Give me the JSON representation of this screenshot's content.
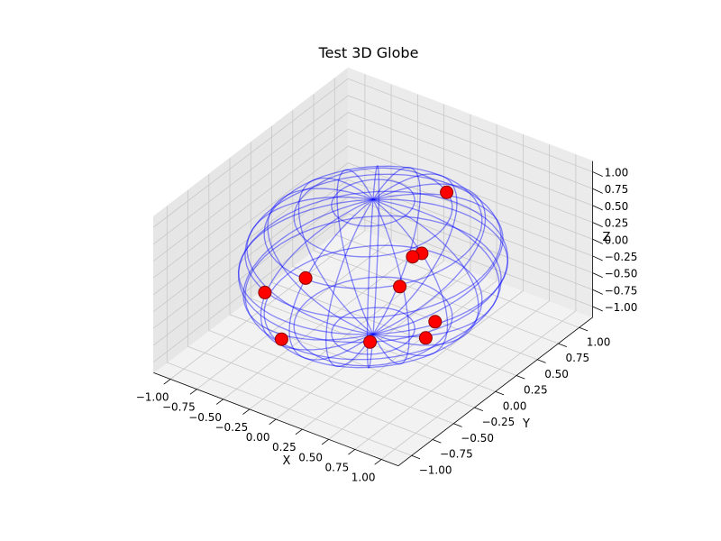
{
  "chart_data": {
    "type": "scatter",
    "subtype": "3d-scatter-with-wireframe-sphere",
    "title": "Test 3D Globe",
    "xlabel": "X",
    "ylabel": "Y",
    "zlabel": "Z",
    "xlim": [
      -1.05,
      1.05
    ],
    "ylim": [
      -1.05,
      1.05
    ],
    "zlim": [
      -1.05,
      1.05
    ],
    "xticks": [
      "−1.00",
      "−0.75",
      "−0.50",
      "−0.25",
      "0.00",
      "0.25",
      "0.50",
      "0.75",
      "1.00"
    ],
    "yticks": [
      "−1.00",
      "−0.75",
      "−0.50",
      "−0.25",
      "0.00",
      "0.25",
      "0.50",
      "0.75",
      "1.00"
    ],
    "zticks": [
      "−1.00",
      "−0.75",
      "−0.50",
      "−0.25",
      "0.00",
      "0.25",
      "0.50",
      "0.75",
      "1.00"
    ],
    "view": {
      "elev": 30,
      "azim": -60
    },
    "grid": true,
    "sphere": {
      "radius": 1,
      "color": "#0000ff",
      "meridians": 20,
      "parallels": 10,
      "alpha": 0.3
    },
    "points": {
      "color": "#ff0000",
      "edgecolor": "#8b0000",
      "x": [
        0.3,
        0.62,
        0.59,
        0.65,
        -0.72,
        -0.36,
        0.35,
        0.05,
        -0.78,
        0.42
      ],
      "y": [
        0.5,
        -0.2,
        -0.27,
        -0.5,
        0.1,
        -0.64,
        0.3,
        -0.1,
        -0.31,
        0.1
      ],
      "z": [
        0.81,
        0.76,
        0.76,
        0.57,
        -0.69,
        -0.68,
        -0.89,
        -0.99,
        -0.55,
        -0.9
      ]
    }
  }
}
